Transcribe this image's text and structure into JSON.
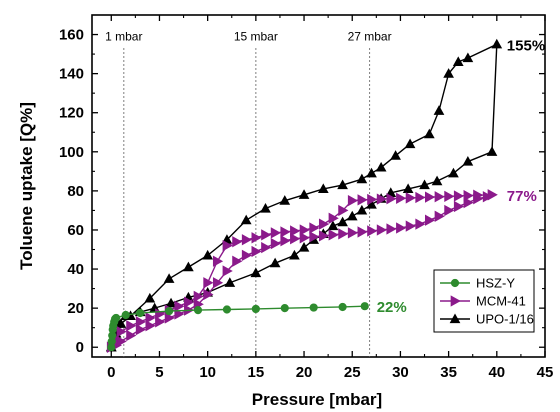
{
  "chart_data": {
    "type": "line",
    "xlabel": "Pressure [mbar]",
    "ylabel": "Toluene uptake [Q%]",
    "xlim": [
      -2,
      45
    ],
    "ylim": [
      -5,
      170
    ],
    "x_ticks": [
      0,
      5,
      10,
      15,
      20,
      25,
      30,
      35,
      40,
      45
    ],
    "y_ticks": [
      0,
      20,
      40,
      60,
      80,
      100,
      120,
      140,
      160
    ],
    "grid": false,
    "legend_position": "center-right",
    "reference_lines": [
      {
        "x": 1.3,
        "label": "1 mbar"
      },
      {
        "x": 15,
        "label": "15 mbar"
      },
      {
        "x": 26.8,
        "label": "27 mbar"
      }
    ],
    "annotations": [
      {
        "text": "155%",
        "x": 40,
        "y": 155,
        "color": "#000000"
      },
      {
        "text": "77%",
        "x": 40,
        "y": 78,
        "color": "#8b1a8b"
      },
      {
        "text": "22%",
        "x": 26.5,
        "y": 21,
        "color": "#2e8b2e"
      }
    ],
    "series": [
      {
        "name": "HSZ-Y",
        "color": "#2e8b2e",
        "marker": "circle",
        "x": [
          0,
          0.05,
          0.1,
          0.15,
          0.2,
          0.3,
          0.4,
          0.5,
          1.5,
          3,
          6,
          9,
          12,
          15,
          18,
          21,
          24,
          26.3
        ],
        "y": [
          0,
          3,
          6,
          9,
          11,
          13,
          14.5,
          15,
          16.5,
          17.5,
          18.5,
          19,
          19.3,
          19.6,
          20,
          20.3,
          20.6,
          21
        ]
      },
      {
        "name": "MCM-41",
        "color": "#8b1a8b",
        "marker": "triangle-right",
        "x": [
          0,
          0.5,
          1,
          2,
          3,
          4,
          5,
          6,
          7,
          8,
          9,
          10,
          11,
          12,
          13,
          14,
          15,
          16,
          17,
          18,
          19,
          20,
          21,
          22,
          23,
          24,
          25,
          26,
          27,
          28,
          29,
          30,
          31,
          32,
          33,
          34,
          35,
          36,
          37,
          38,
          39,
          39.5,
          38,
          37,
          36,
          35,
          34,
          33,
          32,
          31,
          30,
          29,
          28,
          27,
          26,
          25,
          24,
          23,
          22,
          21,
          20,
          19,
          18,
          17,
          16,
          15,
          14,
          13,
          12,
          11,
          10,
          9,
          8,
          7,
          6,
          5,
          4,
          3,
          2,
          1,
          0.5,
          0
        ],
        "y": [
          0,
          1,
          3,
          6,
          9,
          11,
          13,
          15,
          17,
          19,
          22,
          27,
          33,
          39,
          44,
          47,
          49,
          51,
          53,
          54.5,
          55.5,
          56,
          56.5,
          57,
          57.5,
          58,
          58.5,
          59,
          59.5,
          60,
          60.5,
          61,
          62,
          63,
          65,
          67,
          70,
          72,
          74,
          76,
          77,
          78,
          77.8,
          77.6,
          77.4,
          77.2,
          77,
          76.8,
          76.6,
          76.4,
          76.2,
          76,
          75.8,
          75.6,
          75.4,
          75,
          70,
          66,
          63,
          61,
          60,
          59.5,
          59,
          58.5,
          57.5,
          56,
          55,
          54,
          52,
          44,
          33,
          26,
          23,
          21,
          19,
          17,
          15,
          13,
          11,
          8,
          4,
          0
        ]
      },
      {
        "name": "UPO-1/16",
        "color": "#000000",
        "marker": "triangle-up",
        "x": [
          0,
          0.2,
          0.5,
          1.5,
          3,
          4.5,
          6.2,
          8,
          10,
          12.3,
          15,
          17,
          19,
          20,
          21,
          22,
          23,
          24,
          25,
          26,
          27,
          28,
          29,
          30.8,
          32.5,
          33.8,
          35.5,
          37,
          39.5,
          40,
          37,
          36,
          35,
          34,
          33,
          31,
          29.5,
          28,
          27,
          26,
          24,
          22,
          20,
          18,
          16,
          14,
          12,
          10,
          8,
          6,
          4,
          2,
          1,
          0.5,
          0
        ],
        "y": [
          0,
          5,
          12,
          16,
          18,
          20,
          22.5,
          25.5,
          28,
          33,
          38,
          43,
          47,
          51,
          55,
          58,
          62,
          64,
          67,
          70,
          73,
          76,
          79,
          81,
          83,
          85,
          89,
          95,
          100,
          155,
          148,
          146,
          140,
          121,
          109,
          104,
          98,
          92,
          89,
          86,
          83,
          81,
          78,
          75,
          71,
          65,
          55,
          47,
          41,
          35,
          25,
          16,
          12,
          7,
          0
        ]
      }
    ]
  }
}
